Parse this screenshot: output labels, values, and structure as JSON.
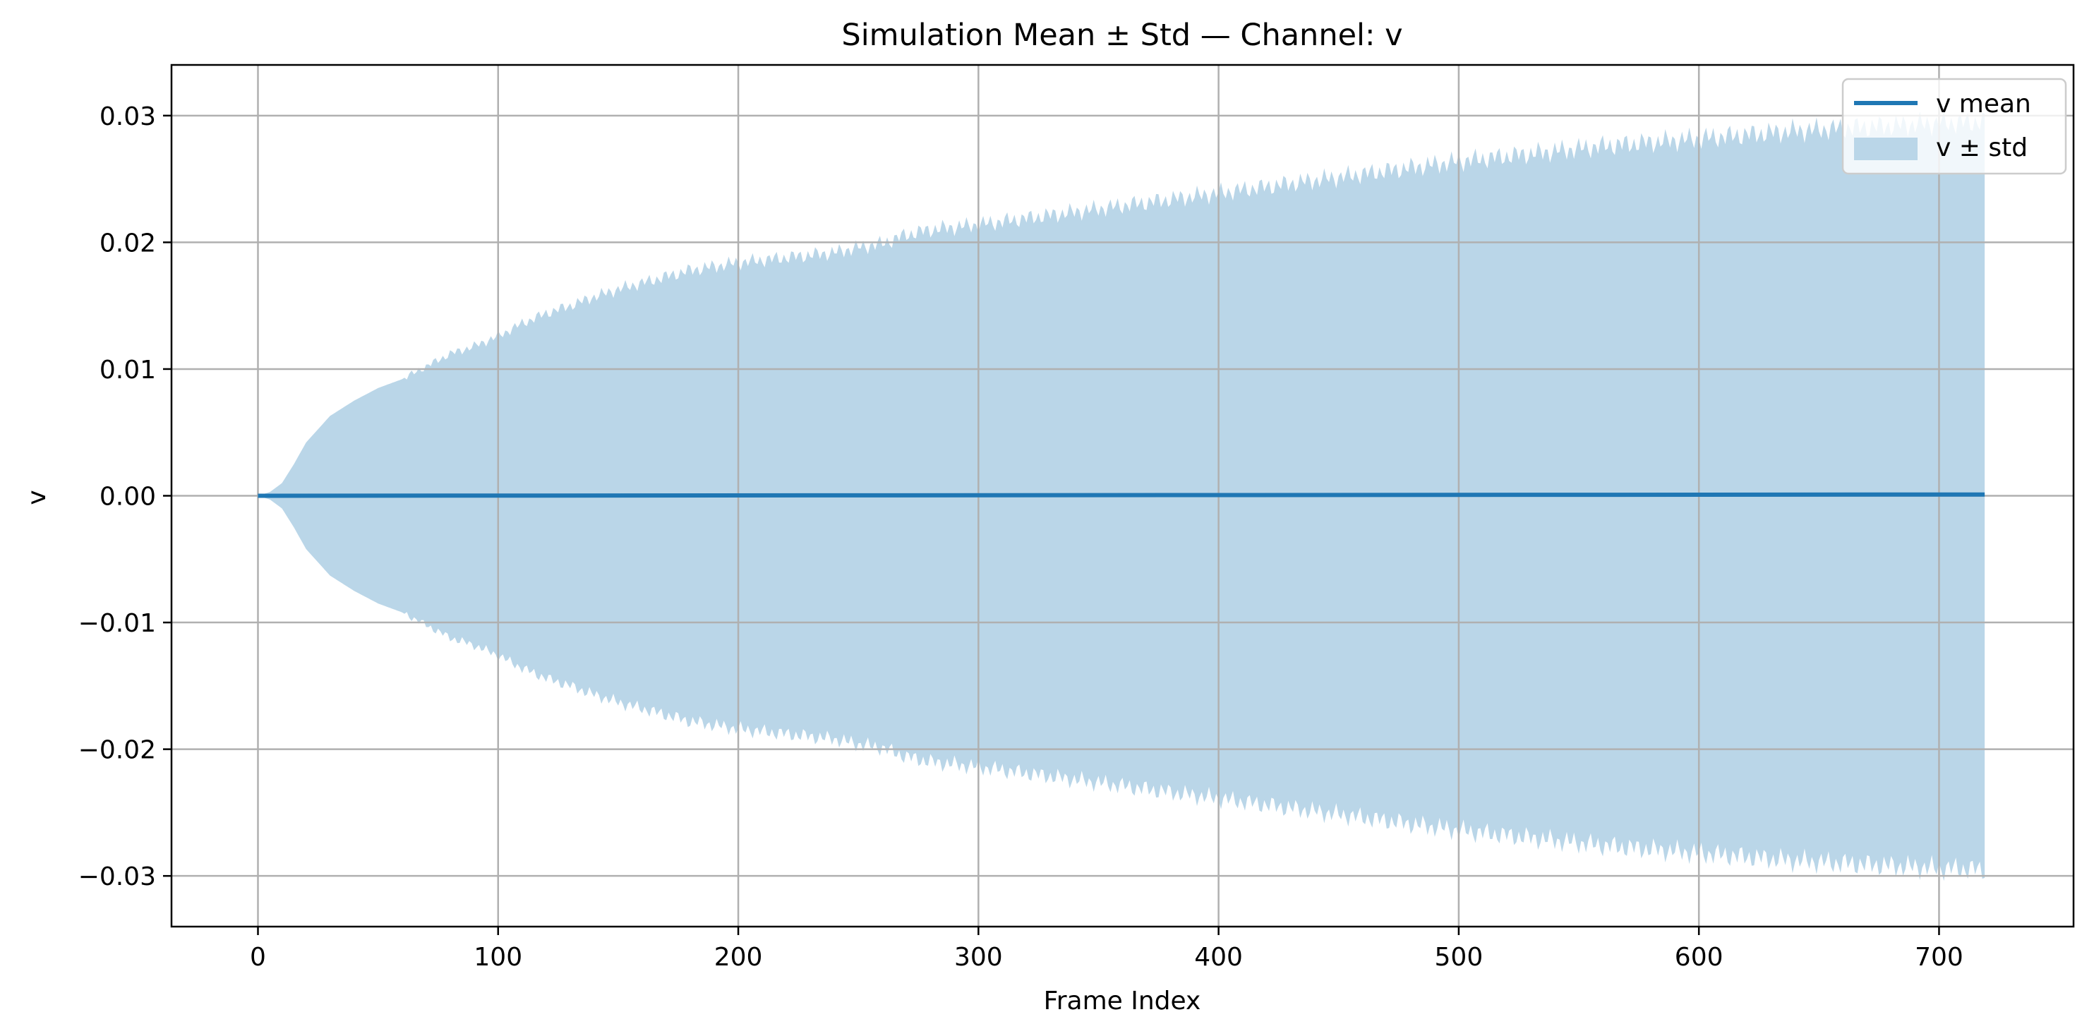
{
  "chart_data": {
    "type": "line",
    "title": "Simulation Mean ± Std — Channel: v",
    "xlabel": "Frame Index",
    "ylabel": "v",
    "xlim": [
      -36,
      756
    ],
    "ylim": [
      -0.034,
      0.034
    ],
    "grid": true,
    "legend_position": "upper right",
    "x_ticks": [
      0,
      100,
      200,
      300,
      400,
      500,
      600,
      700
    ],
    "x_tick_labels": [
      "0",
      "100",
      "200",
      "300",
      "400",
      "500",
      "600",
      "700"
    ],
    "y_ticks": [
      0.03,
      0.02,
      0.01,
      0.0,
      -0.01,
      -0.02,
      -0.03
    ],
    "y_tick_labels": [
      "0.03",
      "0.02",
      "0.01",
      "0.00",
      "−0.01",
      "−0.02",
      "−0.03"
    ],
    "colors": {
      "mean": "#1f77b4",
      "band": "#bad6e8",
      "grid": "#b0b0b0"
    },
    "series": [
      {
        "name": "v mean",
        "kind": "line",
        "x_range": [
          0,
          719
        ],
        "value": 0.0,
        "final_value": 0.0001
      },
      {
        "name": "v ± std",
        "kind": "band",
        "x_range": [
          0,
          719
        ],
        "std_envelope": {
          "x": [
            0,
            5,
            10,
            15,
            20,
            30,
            40,
            50,
            60,
            70,
            80,
            90,
            100,
            110,
            120,
            130,
            140,
            150,
            160,
            170,
            180,
            190,
            200,
            210,
            220,
            230,
            240,
            250,
            260,
            270,
            280,
            300,
            320,
            340,
            360,
            380,
            400,
            420,
            440,
            460,
            480,
            500,
            520,
            540,
            560,
            580,
            600,
            620,
            640,
            660,
            680,
            700,
            719
          ],
          "std": [
            0.0,
            0.0003,
            0.001,
            0.0025,
            0.0042,
            0.0063,
            0.0075,
            0.0085,
            0.0092,
            0.0102,
            0.0112,
            0.0118,
            0.0126,
            0.0136,
            0.0144,
            0.015,
            0.0157,
            0.0163,
            0.0168,
            0.0173,
            0.0178,
            0.0181,
            0.0184,
            0.0186,
            0.0188,
            0.019,
            0.0192,
            0.0196,
            0.0199,
            0.0206,
            0.021,
            0.0214,
            0.0219,
            0.0224,
            0.0229,
            0.0234,
            0.0239,
            0.0244,
            0.0249,
            0.0254,
            0.0259,
            0.0264,
            0.0268,
            0.0272,
            0.0276,
            0.0279,
            0.0282,
            0.0285,
            0.0288,
            0.029,
            0.0292,
            0.0294,
            0.0295
          ]
        }
      }
    ]
  }
}
